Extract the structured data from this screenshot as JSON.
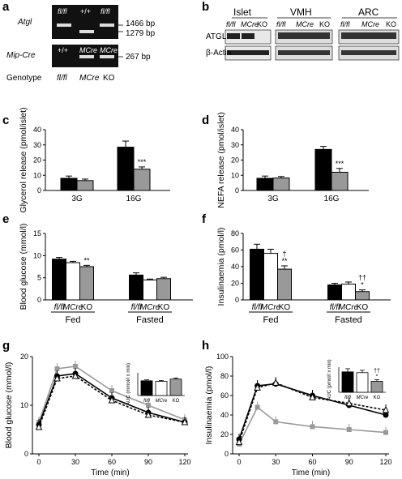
{
  "panels": {
    "a": {
      "letter": "a",
      "gene_rows": [
        "Atgl",
        "Mip-Cre"
      ],
      "lanes_top": [
        "fl/fl",
        "+/+",
        "fl/fl"
      ],
      "lanes_bottom": [
        "+/+",
        "MCre",
        "MCre"
      ],
      "bands": [
        "1466 bp",
        "1279 bp",
        "267 bp"
      ],
      "genotype_label": "Genotype",
      "genotypes": [
        "fl/fl",
        "MCre",
        "KO"
      ]
    },
    "b": {
      "letter": "b",
      "tissues": [
        "Islet",
        "VMH",
        "ARC"
      ],
      "lanes": [
        "fl/fl",
        "MCre",
        "KO"
      ],
      "proteins": [
        "ATGL",
        "β-Actin"
      ]
    },
    "c": {
      "letter": "c"
    },
    "d": {
      "letter": "d"
    },
    "e": {
      "letter": "e"
    },
    "f": {
      "letter": "f"
    },
    "g": {
      "letter": "g"
    },
    "h": {
      "letter": "h"
    }
  },
  "colors": {
    "flfl": "#000000",
    "mcre": "#ffffff",
    "ko": "#999999"
  },
  "chart_data": [
    {
      "id": "c",
      "type": "bar",
      "ylabel": "Glycerol release (pmol/islet)",
      "categories": [
        "3G",
        "16G"
      ],
      "ylim": [
        0,
        40
      ],
      "yticks": [
        0,
        10,
        20,
        30,
        40
      ],
      "series": [
        {
          "values": [
            8,
            28.5
          ],
          "errors": [
            1.5,
            4
          ]
        },
        {
          "values": [
            6.5,
            14
          ],
          "errors": [
            1,
            1.5
          ]
        }
      ],
      "annotations": [
        "",
        "***"
      ]
    },
    {
      "id": "d",
      "type": "bar",
      "ylabel": "NEFA release (pmol/islet)",
      "categories": [
        "3G",
        "16G"
      ],
      "ylim": [
        0,
        40
      ],
      "yticks": [
        0,
        10,
        20,
        30,
        40
      ],
      "series": [
        {
          "values": [
            8,
            27
          ],
          "errors": [
            1.5,
            2
          ]
        },
        {
          "values": [
            8.2,
            12
          ],
          "errors": [
            1,
            2.5
          ]
        }
      ],
      "annotations": [
        "",
        "***"
      ]
    },
    {
      "id": "e",
      "type": "bar",
      "ylabel": "Blood glucose (mmol/l)",
      "groups": [
        "Fed",
        "Fasted"
      ],
      "lanes": [
        "fl/fl",
        "MCre",
        "KO"
      ],
      "ylim": [
        0,
        15
      ],
      "yticks": [
        0,
        5,
        10,
        15
      ],
      "series": [
        {
          "name": "fl/fl",
          "values": [
            9.2,
            5.6
          ],
          "errors": [
            0.4,
            0.5
          ]
        },
        {
          "name": "MCre",
          "values": [
            8.4,
            4.5
          ],
          "errors": [
            0.3,
            0.2
          ]
        },
        {
          "name": "KO",
          "values": [
            7.5,
            4.8
          ],
          "errors": [
            0.3,
            0.3
          ]
        }
      ],
      "annotations": [
        [
          "",
          "",
          "**"
        ],
        [
          "",
          "",
          ""
        ]
      ]
    },
    {
      "id": "f",
      "type": "bar",
      "ylabel": "Insulinaemia (pmol/l)",
      "groups": [
        "Fed",
        "Fasted"
      ],
      "lanes": [
        "fl/fl",
        "MCre",
        "KO"
      ],
      "ylim": [
        0,
        80
      ],
      "yticks": [
        0,
        20,
        40,
        60,
        80
      ],
      "series": [
        {
          "name": "fl/fl",
          "values": [
            61,
            18
          ],
          "errors": [
            6,
            2
          ]
        },
        {
          "name": "MCre",
          "values": [
            56,
            19
          ],
          "errors": [
            5,
            2.5
          ]
        },
        {
          "name": "KO",
          "values": [
            37,
            10
          ],
          "errors": [
            4,
            2
          ]
        }
      ],
      "annotations": [
        [
          "",
          "",
          "**"
        ],
        [
          "",
          "",
          "*"
        ]
      ],
      "annotations_top": [
        [
          "",
          "",
          "†"
        ],
        [
          "",
          "",
          "††"
        ]
      ]
    },
    {
      "id": "g",
      "type": "line",
      "xlabel": "Time (min)",
      "ylabel": "Blood glucose (mmol/l)",
      "x": [
        0,
        15,
        30,
        60,
        90,
        120
      ],
      "xlim": [
        0,
        120
      ],
      "xticks": [
        0,
        30,
        60,
        90,
        120
      ],
      "ylim": [
        0,
        20
      ],
      "yticks": [
        0,
        10,
        20
      ],
      "series": [
        {
          "name": "fl/fl",
          "values": [
            6,
            16,
            16.5,
            11.5,
            8.5,
            6.5
          ]
        },
        {
          "name": "MCre",
          "values": [
            5.5,
            15.5,
            16,
            11,
            8,
            6.5
          ]
        },
        {
          "name": "KO",
          "values": [
            6.5,
            17.5,
            18,
            13,
            10,
            7
          ]
        }
      ],
      "inset": {
        "ylabel": "AUC (mmol/l x min)",
        "categories": [
          "fl/fl",
          "MCre",
          "KO"
        ],
        "values": [
          1.3,
          1.25,
          1.45
        ],
        "errors": [
          0.08,
          0.08,
          0.1
        ],
        "ylim": [
          0,
          2
        ]
      }
    },
    {
      "id": "h",
      "type": "line",
      "xlabel": "Time (min)",
      "ylabel": "Insulinaemia (pmol/l)",
      "x": [
        0,
        15,
        30,
        60,
        90,
        120
      ],
      "xlim": [
        0,
        120
      ],
      "xticks": [
        0,
        30,
        60,
        90,
        120
      ],
      "ylim": [
        0,
        100
      ],
      "yticks": [
        0,
        20,
        40,
        60,
        80,
        100
      ],
      "series": [
        {
          "name": "fl/fl",
          "values": [
            15,
            70,
            72,
            60,
            50,
            40
          ]
        },
        {
          "name": "MCre",
          "values": [
            12,
            68,
            73,
            58,
            52,
            45
          ]
        },
        {
          "name": "KO",
          "values": [
            10,
            48,
            33,
            28,
            25,
            22
          ]
        }
      ],
      "inset": {
        "ylabel": "AUC (pmol/l x min)",
        "categories": [
          "fl/fl",
          "MCre",
          "KO"
        ],
        "values": [
          1.3,
          1.25,
          0.7
        ],
        "errors": [
          0.2,
          0.15,
          0.1
        ],
        "ylim": [
          0,
          1.6
        ],
        "annotation": "*",
        "annotation_top": "††"
      }
    }
  ]
}
